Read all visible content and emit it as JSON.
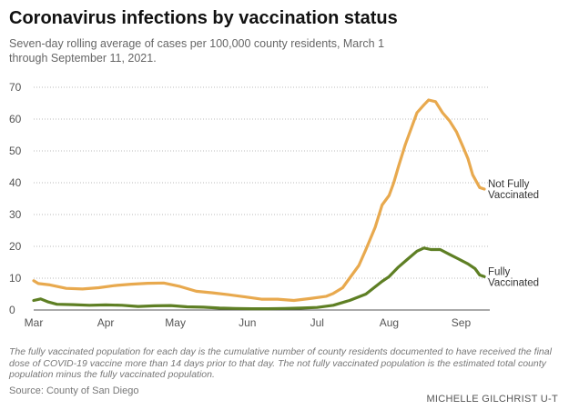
{
  "header": {
    "title": "Coronavirus infections by vaccination status",
    "subtitle": "Seven-day rolling average of cases per 100,000 county residents, March 1 through September 11, 2021."
  },
  "footer": {
    "note": "The fully vaccinated population for each day is the cumulative number of county residents documented to have received the final dose of COVID-19 vaccine more than 14 days prior to that day. The not fully vaccinated population is the estimated total county population minus the fully vaccinated population.",
    "source": "Source: County of San Diego",
    "credit": "MICHELLE GILCHRIST U-T"
  },
  "chart_data": {
    "type": "line",
    "x_range": [
      "2021-03-01",
      "2021-09-11"
    ],
    "x_ticks": [
      {
        "label": "Mar",
        "date": "2021-03-01"
      },
      {
        "label": "Apr",
        "date": "2021-04-01"
      },
      {
        "label": "May",
        "date": "2021-05-01"
      },
      {
        "label": "Jun",
        "date": "2021-06-01"
      },
      {
        "label": "Jul",
        "date": "2021-07-01"
      },
      {
        "label": "Aug",
        "date": "2021-08-01"
      },
      {
        "label": "Sep",
        "date": "2021-09-01"
      }
    ],
    "ylim": [
      0,
      70
    ],
    "y_ticks": [
      0,
      10,
      20,
      30,
      40,
      50,
      60,
      70
    ],
    "grid": "horizontal-dotted",
    "series": [
      {
        "name": "Not Fully Vaccinated",
        "label_lines": [
          "Not Fully",
          "Vaccinated"
        ],
        "color": "#e8a94e",
        "points": [
          [
            "2021-03-01",
            9.2
          ],
          [
            "2021-03-03",
            8.3
          ],
          [
            "2021-03-08",
            7.9
          ],
          [
            "2021-03-15",
            6.8
          ],
          [
            "2021-03-22",
            6.6
          ],
          [
            "2021-03-29",
            7.0
          ],
          [
            "2021-04-05",
            7.7
          ],
          [
            "2021-04-12",
            8.1
          ],
          [
            "2021-04-19",
            8.4
          ],
          [
            "2021-04-26",
            8.5
          ],
          [
            "2021-05-03",
            7.4
          ],
          [
            "2021-05-10",
            5.9
          ],
          [
            "2021-05-17",
            5.4
          ],
          [
            "2021-05-24",
            4.8
          ],
          [
            "2021-05-31",
            4.1
          ],
          [
            "2021-06-07",
            3.4
          ],
          [
            "2021-06-14",
            3.4
          ],
          [
            "2021-06-21",
            3.0
          ],
          [
            "2021-06-28",
            3.6
          ],
          [
            "2021-07-05",
            4.3
          ],
          [
            "2021-07-08",
            5.2
          ],
          [
            "2021-07-12",
            7.0
          ],
          [
            "2021-07-15",
            10.0
          ],
          [
            "2021-07-19",
            14.0
          ],
          [
            "2021-07-22",
            19.0
          ],
          [
            "2021-07-26",
            26.0
          ],
          [
            "2021-07-29",
            33.0
          ],
          [
            "2021-08-01",
            36.0
          ],
          [
            "2021-08-03",
            40.0
          ],
          [
            "2021-08-05",
            45.0
          ],
          [
            "2021-08-08",
            52.0
          ],
          [
            "2021-08-11",
            58.0
          ],
          [
            "2021-08-13",
            62.0
          ],
          [
            "2021-08-16",
            64.5
          ],
          [
            "2021-08-18",
            66.0
          ],
          [
            "2021-08-21",
            65.5
          ],
          [
            "2021-08-24",
            62.0
          ],
          [
            "2021-08-27",
            59.5
          ],
          [
            "2021-08-30",
            56.0
          ],
          [
            "2021-09-02",
            51.0
          ],
          [
            "2021-09-04",
            47.5
          ],
          [
            "2021-09-06",
            42.5
          ],
          [
            "2021-09-09",
            38.5
          ],
          [
            "2021-09-11",
            38.0
          ]
        ]
      },
      {
        "name": "Fully Vaccinated",
        "label_lines": [
          "Fully",
          "Vaccinated"
        ],
        "color": "#5e7f24",
        "points": [
          [
            "2021-03-01",
            3.0
          ],
          [
            "2021-03-04",
            3.5
          ],
          [
            "2021-03-07",
            2.6
          ],
          [
            "2021-03-11",
            1.8
          ],
          [
            "2021-03-18",
            1.7
          ],
          [
            "2021-03-25",
            1.5
          ],
          [
            "2021-04-01",
            1.6
          ],
          [
            "2021-04-08",
            1.5
          ],
          [
            "2021-04-15",
            1.1
          ],
          [
            "2021-04-22",
            1.3
          ],
          [
            "2021-04-29",
            1.4
          ],
          [
            "2021-05-06",
            1.0
          ],
          [
            "2021-05-13",
            0.9
          ],
          [
            "2021-05-20",
            0.6
          ],
          [
            "2021-05-27",
            0.5
          ],
          [
            "2021-06-03",
            0.4
          ],
          [
            "2021-06-10",
            0.4
          ],
          [
            "2021-06-17",
            0.5
          ],
          [
            "2021-06-24",
            0.6
          ],
          [
            "2021-07-01",
            0.8
          ],
          [
            "2021-07-08",
            1.5
          ],
          [
            "2021-07-15",
            3.0
          ],
          [
            "2021-07-22",
            5.0
          ],
          [
            "2021-07-29",
            9.0
          ],
          [
            "2021-08-01",
            10.5
          ],
          [
            "2021-08-05",
            13.5
          ],
          [
            "2021-08-09",
            16.0
          ],
          [
            "2021-08-13",
            18.5
          ],
          [
            "2021-08-16",
            19.5
          ],
          [
            "2021-08-19",
            19.0
          ],
          [
            "2021-08-23",
            19.0
          ],
          [
            "2021-08-27",
            17.5
          ],
          [
            "2021-08-31",
            16.0
          ],
          [
            "2021-09-04",
            14.5
          ],
          [
            "2021-09-07",
            13.0
          ],
          [
            "2021-09-09",
            11.0
          ],
          [
            "2021-09-11",
            10.5
          ]
        ]
      }
    ]
  }
}
